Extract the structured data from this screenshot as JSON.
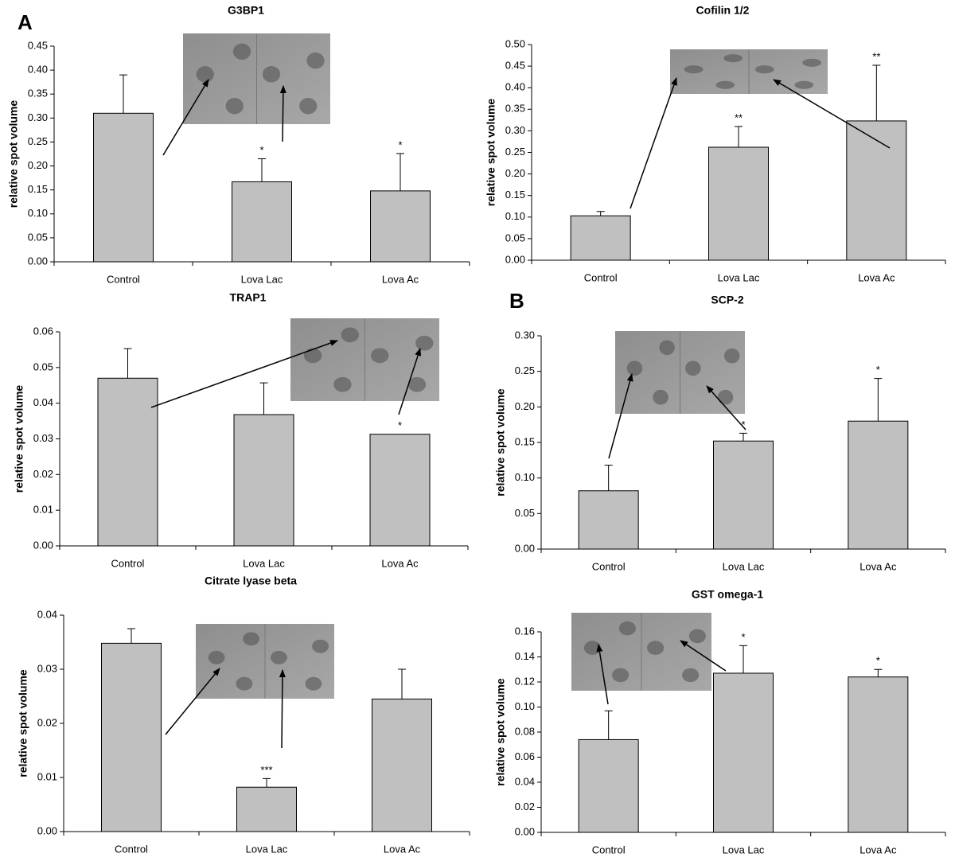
{
  "chart_data": [
    {
      "type": "bar",
      "panel_label": "A",
      "title": "G3BP1",
      "ylabel": "relative spot volume",
      "categories": [
        "Control",
        "Lova Lac",
        "Lova Ac"
      ],
      "values": [
        0.31,
        0.167,
        0.148
      ],
      "errors": [
        0.08,
        0.048,
        0.078
      ],
      "annotations": [
        null,
        "*",
        "*"
      ],
      "color": "#c0c0c0",
      "ylim": [
        0,
        0.45
      ],
      "yticks": [
        {
          "value": 0,
          "label": "0.00"
        },
        {
          "value": 0.05,
          "label": "0.05"
        },
        {
          "value": 0.1,
          "label": "0.10"
        },
        {
          "value": 0.15,
          "label": "0.15"
        },
        {
          "value": 0.2,
          "label": "0.20"
        },
        {
          "value": 0.25,
          "label": "0.25"
        },
        {
          "value": 0.3,
          "label": "0.30"
        },
        {
          "value": 0.35,
          "label": "0.35"
        },
        {
          "value": 0.4,
          "label": "0.40"
        },
        {
          "value": 0.45,
          "label": "0.45"
        }
      ]
    },
    {
      "type": "bar",
      "title": "Cofilin 1/2",
      "ylabel": "relative spot volume",
      "categories": [
        "Control",
        "Lova Lac",
        "Lova Ac"
      ],
      "values": [
        0.103,
        0.262,
        0.323
      ],
      "errors": [
        0.01,
        0.048,
        0.129
      ],
      "annotations": [
        null,
        "**",
        "**"
      ],
      "color": "#c0c0c0",
      "ylim": [
        0,
        0.5
      ],
      "yticks": [
        {
          "value": 0,
          "label": "0.00"
        },
        {
          "value": 0.05,
          "label": "0.05"
        },
        {
          "value": 0.1,
          "label": "0.10"
        },
        {
          "value": 0.15,
          "label": "0.15"
        },
        {
          "value": 0.2,
          "label": "0.20"
        },
        {
          "value": 0.25,
          "label": "0.25"
        },
        {
          "value": 0.3,
          "label": "0.30"
        },
        {
          "value": 0.35,
          "label": "0.35"
        },
        {
          "value": 0.4,
          "label": "0.40"
        },
        {
          "value": 0.45,
          "label": "0.45"
        },
        {
          "value": 0.5,
          "label": "0.50"
        }
      ]
    },
    {
      "type": "bar",
      "title": "TRAP1",
      "ylabel": "relative spot volume",
      "categories": [
        "Control",
        "Lova Lac",
        "Lova Ac"
      ],
      "values": [
        0.047,
        0.0368,
        0.0313
      ],
      "errors": [
        0.0083,
        0.0089,
        null
      ],
      "annotations": [
        null,
        null,
        "*"
      ],
      "color": "#c0c0c0",
      "ylim": [
        0,
        0.06
      ],
      "yticks": [
        {
          "value": 0,
          "label": "0.00"
        },
        {
          "value": 0.01,
          "label": "0.01"
        },
        {
          "value": 0.02,
          "label": "0.02"
        },
        {
          "value": 0.03,
          "label": "0.03"
        },
        {
          "value": 0.04,
          "label": "0.04"
        },
        {
          "value": 0.05,
          "label": "0.05"
        },
        {
          "value": 0.06,
          "label": "0.06"
        }
      ]
    },
    {
      "type": "bar",
      "panel_label": "B",
      "title": "SCP-2",
      "ylabel": "relative spot volume",
      "categories": [
        "Control",
        "Lova Lac",
        "Lova Ac"
      ],
      "values": [
        0.082,
        0.152,
        0.18
      ],
      "errors": [
        0.036,
        0.011,
        0.06
      ],
      "annotations": [
        null,
        "*",
        "*"
      ],
      "color": "#c0c0c0",
      "ylim": [
        0,
        0.3
      ],
      "yticks": [
        {
          "value": 0,
          "label": "0.00"
        },
        {
          "value": 0.05,
          "label": "0.05"
        },
        {
          "value": 0.1,
          "label": "0.10"
        },
        {
          "value": 0.15,
          "label": "0.15"
        },
        {
          "value": 0.2,
          "label": "0.20"
        },
        {
          "value": 0.25,
          "label": "0.25"
        },
        {
          "value": 0.3,
          "label": "0.30"
        }
      ]
    },
    {
      "type": "bar",
      "title": "Citrate lyase beta",
      "ylabel": "relative spot volume",
      "categories": [
        "Control",
        "Lova Lac",
        "Lova Ac"
      ],
      "values": [
        0.0348,
        0.0082,
        0.0245
      ],
      "errors": [
        0.0027,
        0.0016,
        0.0055
      ],
      "annotations": [
        null,
        "***",
        null
      ],
      "color": "#c0c0c0",
      "ylim": [
        0,
        0.04
      ],
      "yticks": [
        {
          "value": 0,
          "label": "0.00"
        },
        {
          "value": 0.01,
          "label": "0.01"
        },
        {
          "value": 0.02,
          "label": "0.02"
        },
        {
          "value": 0.03,
          "label": "0.03"
        },
        {
          "value": 0.04,
          "label": "0.04"
        }
      ]
    },
    {
      "type": "bar",
      "title": "GST omega-1",
      "ylabel": "relative spot volume",
      "categories": [
        "Control",
        "Lova Lac",
        "Lova Ac"
      ],
      "values": [
        0.074,
        0.127,
        0.124
      ],
      "errors": [
        0.023,
        0.022,
        0.006
      ],
      "annotations": [
        null,
        "*",
        "*"
      ],
      "color": "#c0c0c0",
      "ylim": [
        0,
        0.16
      ],
      "yticks": [
        {
          "value": 0,
          "label": "0.00"
        },
        {
          "value": 0.02,
          "label": "0.02"
        },
        {
          "value": 0.04,
          "label": "0.04"
        },
        {
          "value": 0.06,
          "label": "0.06"
        },
        {
          "value": 0.08,
          "label": "0.08"
        },
        {
          "value": 0.1,
          "label": "0.10"
        },
        {
          "value": 0.12,
          "label": "0.12"
        },
        {
          "value": 0.14,
          "label": "0.14"
        },
        {
          "value": 0.16,
          "label": "0.16"
        }
      ]
    }
  ]
}
